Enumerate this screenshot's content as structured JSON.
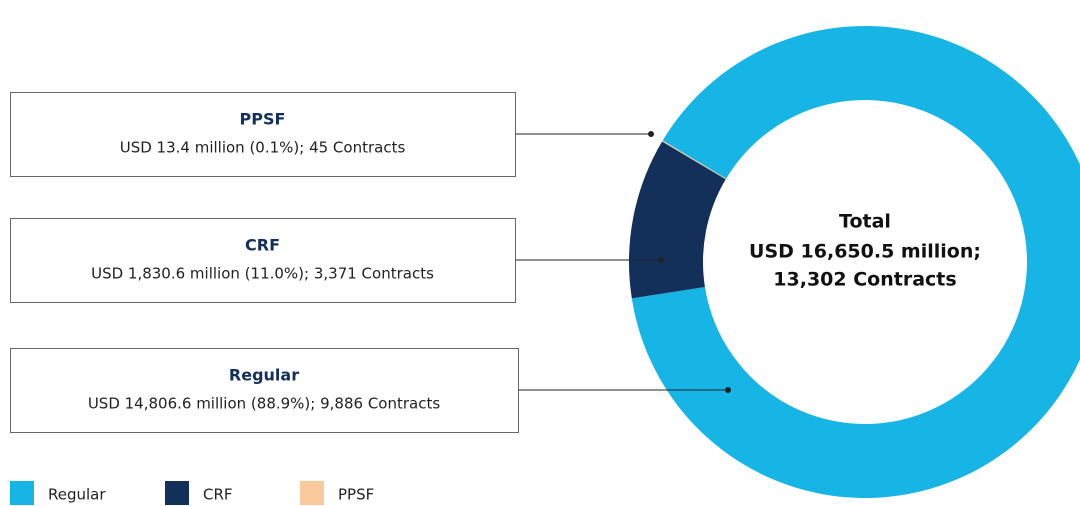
{
  "chart_data": {
    "type": "pie",
    "donut": true,
    "categories": [
      "Regular",
      "CRF",
      "PPSF"
    ],
    "values": [
      14806.6,
      1830.6,
      13.4
    ],
    "value_labels": [
      "USD 14,806.6 million (88.9%); 9,886 Contracts",
      "USD 1,830.6 million (11.0%); 3,371 Contracts",
      "USD 13.4 million (0.1%); 45 Contracts"
    ],
    "colors": [
      "#17b4e6",
      "#12305a",
      "#f9c89b"
    ],
    "center_label": [
      "Total",
      "USD 16,650.5 million;",
      "13,302 Contracts"
    ],
    "legend": "bottom-left"
  }
}
